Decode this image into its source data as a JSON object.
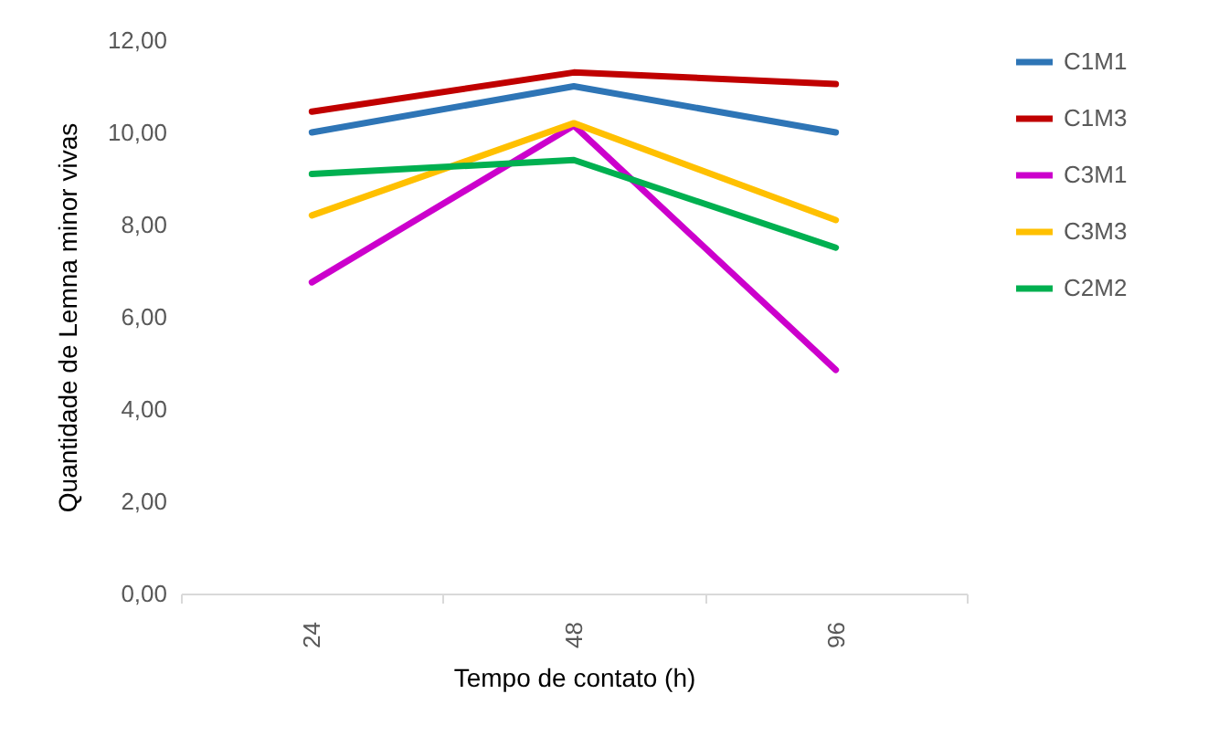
{
  "chart_data": {
    "type": "line",
    "xlabel": "Tempo de contato (h)",
    "ylabel": "Quantidade de Lemna minor vivas",
    "categories": [
      "24",
      "48",
      "96"
    ],
    "series": [
      {
        "name": "C1M1",
        "color": "#2e75b6",
        "values": [
          10.0,
          11.0,
          10.0
        ]
      },
      {
        "name": "C1M3",
        "color": "#c00000",
        "values": [
          10.45,
          11.3,
          11.05
        ]
      },
      {
        "name": "C3M1",
        "color": "#cc00cc",
        "values": [
          6.75,
          10.15,
          4.85
        ]
      },
      {
        "name": "C3M3",
        "color": "#ffc000",
        "values": [
          8.2,
          10.2,
          8.1
        ]
      },
      {
        "name": "C2M2",
        "color": "#00b050",
        "values": [
          9.1,
          9.4,
          7.5
        ]
      }
    ],
    "ylim": [
      0,
      12
    ],
    "yticks": [
      {
        "value": 0,
        "label": "0,00"
      },
      {
        "value": 2,
        "label": "2,00"
      },
      {
        "value": 4,
        "label": "4,00"
      },
      {
        "value": 6,
        "label": "6,00"
      },
      {
        "value": 8,
        "label": "8,00"
      },
      {
        "value": 10,
        "label": "10,00"
      },
      {
        "value": 12,
        "label": "12,00"
      }
    ],
    "grid": false,
    "legend": "right",
    "marker": "none",
    "line_style": "solid"
  }
}
